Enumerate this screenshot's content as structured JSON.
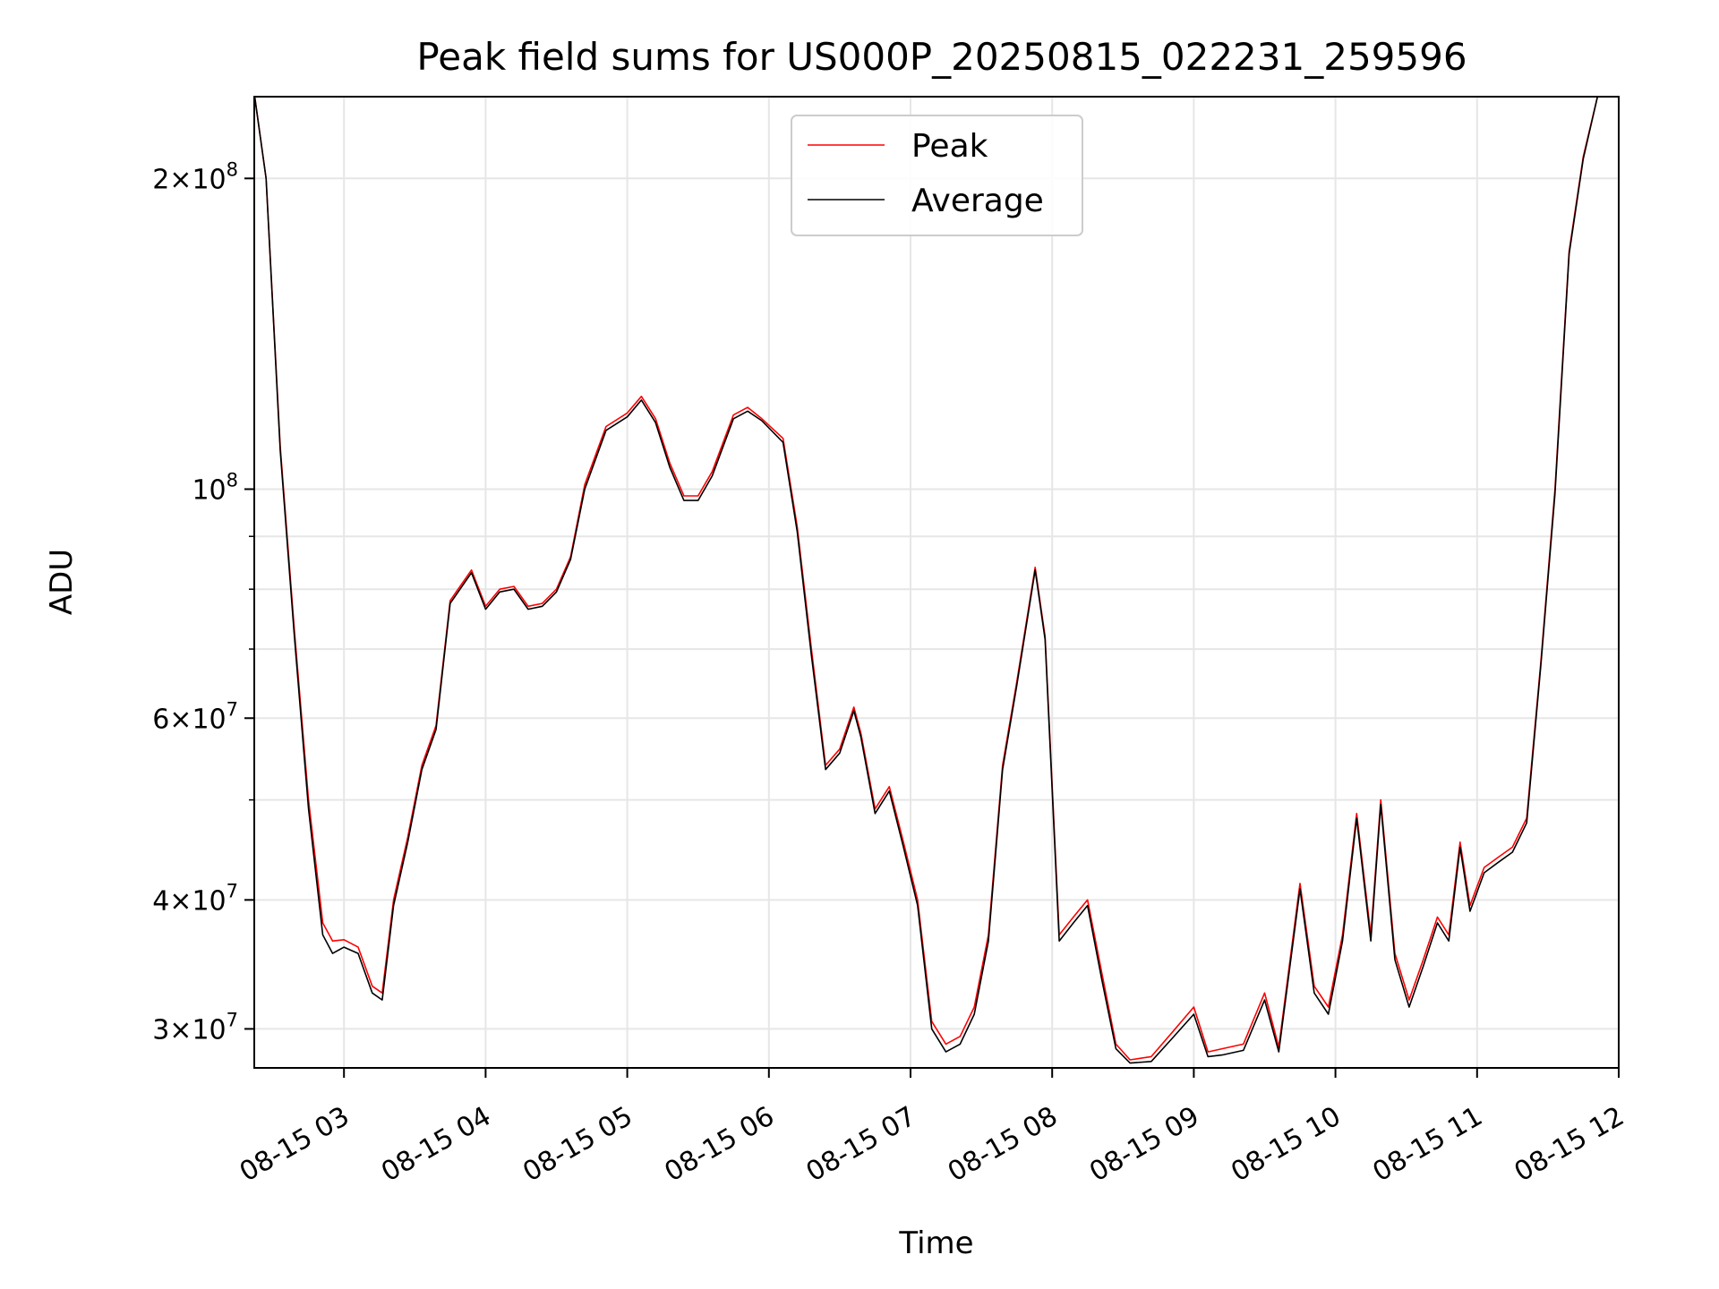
{
  "chart_data": {
    "type": "line",
    "title": "Peak field sums for US000P_20250815_022231_259596",
    "xlabel": "Time",
    "ylabel": "ADU",
    "yscale": "log",
    "xlim": [
      "2025-08-15 02:22",
      "2025-08-15 12:00"
    ],
    "ylim": [
      27500000,
      240000000
    ],
    "x_ticks": [
      "08-15 03",
      "08-15 04",
      "08-15 05",
      "08-15 06",
      "08-15 07",
      "08-15 08",
      "08-15 09",
      "08-15 10",
      "08-15 11",
      "08-15 12"
    ],
    "y_ticks": [
      {
        "value": 30000000,
        "base": "3",
        "exp": "7"
      },
      {
        "value": 40000000,
        "base": "4",
        "exp": "7"
      },
      {
        "value": 60000000,
        "base": "6",
        "exp": "7"
      },
      {
        "value": 100000000,
        "base": "",
        "exp": "8"
      },
      {
        "value": 200000000,
        "base": "2",
        "exp": "8"
      }
    ],
    "grid": true,
    "legend_position": "top-center",
    "x_unit": "hours",
    "x": [
      2.37,
      2.45,
      2.55,
      2.65,
      2.75,
      2.85,
      2.92,
      3.0,
      3.1,
      3.2,
      3.27,
      3.35,
      3.45,
      3.55,
      3.65,
      3.75,
      3.9,
      4.0,
      4.1,
      4.2,
      4.3,
      4.4,
      4.5,
      4.6,
      4.7,
      4.85,
      5.0,
      5.1,
      5.2,
      5.3,
      5.4,
      5.5,
      5.6,
      5.75,
      5.85,
      5.95,
      6.1,
      6.2,
      6.3,
      6.4,
      6.5,
      6.6,
      6.65,
      6.75,
      6.85,
      6.95,
      7.05,
      7.15,
      7.25,
      7.35,
      7.45,
      7.55,
      7.65,
      7.75,
      7.88,
      7.95,
      8.05,
      8.15,
      8.25,
      8.35,
      8.45,
      8.55,
      8.7,
      8.85,
      9.0,
      9.1,
      9.2,
      9.35,
      9.5,
      9.6,
      9.75,
      9.85,
      9.95,
      10.05,
      10.15,
      10.25,
      10.32,
      10.42,
      10.52,
      10.62,
      10.72,
      10.8,
      10.88,
      10.95,
      11.05,
      11.15,
      11.25,
      11.35,
      11.45,
      11.55,
      11.65,
      11.75,
      11.85,
      11.95
    ],
    "series": [
      {
        "name": "Peak",
        "color": "#ff0000",
        "values": [
          240000000,
          200000000,
          110000000,
          73000000,
          50000000,
          38000000,
          36500000,
          36600000,
          36000000,
          33000000,
          32500000,
          40000000,
          46000000,
          54000000,
          59000000,
          78000000,
          83500000,
          77000000,
          80000000,
          80500000,
          77000000,
          77500000,
          80000000,
          86000000,
          101000000,
          115000000,
          118500000,
          123000000,
          117000000,
          106000000,
          98500000,
          98500000,
          104000000,
          118000000,
          120000000,
          117000000,
          112000000,
          92000000,
          70000000,
          54000000,
          56000000,
          61500000,
          58000000,
          49000000,
          51500000,
          45500000,
          40000000,
          30500000,
          29000000,
          29500000,
          31500000,
          37000000,
          54000000,
          65000000,
          84000000,
          72000000,
          37000000,
          38500000,
          40000000,
          34000000,
          29000000,
          28000000,
          28200000,
          29800000,
          31500000,
          28500000,
          28700000,
          29000000,
          32500000,
          28800000,
          41500000,
          33000000,
          31500000,
          37000000,
          48500000,
          37000000,
          50000000,
          35500000,
          32000000,
          35000000,
          38500000,
          37000000,
          45500000,
          39500000,
          43000000,
          44000000,
          45000000,
          48000000,
          68000000,
          100000000,
          170000000,
          210000000,
          240000000,
          240000000
        ]
      },
      {
        "name": "Average",
        "color": "#000000",
        "values": [
          240000000,
          200000000,
          109000000,
          72000000,
          49000000,
          37000000,
          35500000,
          36000000,
          35500000,
          32500000,
          32000000,
          39500000,
          45500000,
          53500000,
          58500000,
          77500000,
          83000000,
          76500000,
          79500000,
          80000000,
          76500000,
          77000000,
          79500000,
          85500000,
          100000000,
          114000000,
          117500000,
          122000000,
          116000000,
          105000000,
          97500000,
          97500000,
          103000000,
          117000000,
          119000000,
          116500000,
          111000000,
          91000000,
          69000000,
          53500000,
          55500000,
          61000000,
          57500000,
          48500000,
          51000000,
          45000000,
          39500000,
          30000000,
          28500000,
          29000000,
          31000000,
          36500000,
          53500000,
          64500000,
          83500000,
          71500000,
          36500000,
          38000000,
          39500000,
          33500000,
          28700000,
          27800000,
          27900000,
          29400000,
          31000000,
          28200000,
          28300000,
          28600000,
          32000000,
          28500000,
          41000000,
          32500000,
          31000000,
          36500000,
          48000000,
          36500000,
          49500000,
          35000000,
          31500000,
          34500000,
          38000000,
          36500000,
          45000000,
          39000000,
          42500000,
          43500000,
          44500000,
          47500000,
          67500000,
          99000000,
          169000000,
          209000000,
          240000000,
          240000000
        ]
      }
    ]
  }
}
